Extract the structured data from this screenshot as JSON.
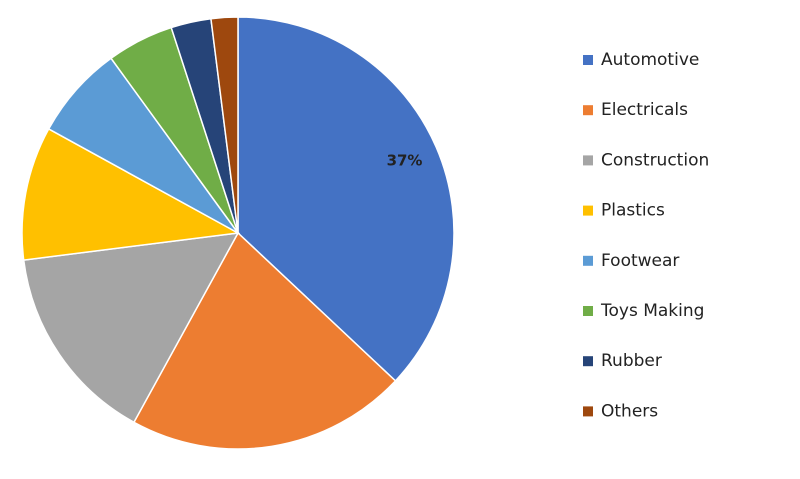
{
  "chart_data": {
    "type": "pie",
    "categories": [
      "Automotive",
      "Electricals",
      "Construction",
      "Plastics",
      "Footwear",
      "Toys Making",
      "Rubber",
      "Others"
    ],
    "values": [
      37,
      21,
      15,
      10,
      7,
      5,
      3,
      2
    ],
    "value_labels": [
      "37%",
      null,
      null,
      null,
      null,
      null,
      null,
      null
    ],
    "colors": [
      "#4472c4",
      "#ed7d31",
      "#a5a5a5",
      "#ffc000",
      "#5b9bd5",
      "#70ad47",
      "#264478",
      "#9e480e"
    ],
    "legend": "right"
  }
}
